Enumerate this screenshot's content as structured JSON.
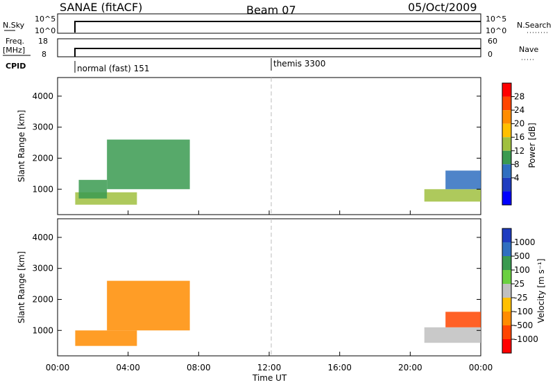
{
  "header": {
    "title": "SANAE (fitACF)",
    "beam": "Beam 07",
    "date": "05/Oct/2009"
  },
  "status_panels": {
    "nsky_label": "N.Sky",
    "nsky_ticks": [
      "10^5",
      "10^0"
    ],
    "nsearch_label": "N.Search",
    "nsearch_ticks": [
      "10^5",
      "10^0"
    ],
    "freq_label_1": "Freq.",
    "freq_label_2": "[MHz]",
    "freq_ticks": [
      "18",
      "8"
    ],
    "nave_label": "Nave",
    "nave_ticks": [
      "60",
      "0"
    ],
    "cpid_label": "CPID",
    "cpid_modes": [
      {
        "label": "normal (fast) 151",
        "start_hour": 0.75
      },
      {
        "label": "themis 3300",
        "start_hour": 12.0
      }
    ]
  },
  "axes": {
    "ylabel": "Slant Range [km]",
    "xlabel": "Time UT",
    "x_ticks": [
      "00:00",
      "04:00",
      "08:00",
      "12:00",
      "16:00",
      "20:00",
      "00:00"
    ],
    "y_ticks": [
      "1000",
      "2000",
      "3000",
      "4000"
    ]
  },
  "colorbars": {
    "power": {
      "label": "Power [dB]",
      "ticks": [
        "28",
        "24",
        "20",
        "16",
        "12",
        "8",
        "4"
      ],
      "colors": [
        "#ff0000",
        "#ff4500",
        "#ff8c00",
        "#ffc000",
        "#a0c040",
        "#3a9a50",
        "#2f6fc0",
        "#1e3cc0",
        "#0000ff"
      ]
    },
    "velocity": {
      "label": "Velocity [m s⁻¹]",
      "ticks": [
        "1000",
        "500",
        "100",
        "25",
        "-25",
        "-100",
        "-500",
        "-1000"
      ],
      "colors": [
        "#1e3cc0",
        "#2f6fc0",
        "#3a9a50",
        "#6ad040",
        "#c0c0c0",
        "#ffc000",
        "#ff8c00",
        "#ff4500",
        "#ff0000"
      ]
    }
  },
  "chart_data": {
    "type": "heatmap",
    "x_range_hours": [
      0,
      24
    ],
    "y_range_km": [
      180,
      4600
    ],
    "power_panel": {
      "echo_regions": [
        {
          "t0": 1.0,
          "t1": 4.5,
          "r0": 500,
          "r1": 900,
          "value": 12
        },
        {
          "t0": 1.2,
          "t1": 2.8,
          "r0": 700,
          "r1": 1300,
          "value": 8
        },
        {
          "t0": 2.8,
          "t1": 7.5,
          "r0": 1000,
          "r1": 2600,
          "value": 8
        },
        {
          "t0": 20.8,
          "t1": 24.0,
          "r0": 600,
          "r1": 1000,
          "value": 12
        },
        {
          "t0": 22.0,
          "t1": 24.0,
          "r0": 1000,
          "r1": 1600,
          "value": 6
        }
      ]
    },
    "velocity_panel": {
      "echo_regions": [
        {
          "t0": 1.0,
          "t1": 4.5,
          "r0": 500,
          "r1": 1000,
          "value": -100
        },
        {
          "t0": 2.8,
          "t1": 7.5,
          "r0": 1000,
          "r1": 2600,
          "value": -200
        },
        {
          "t0": 20.8,
          "t1": 24.0,
          "r0": 600,
          "r1": 1100,
          "value": 0
        },
        {
          "t0": 22.0,
          "t1": 24.0,
          "r0": 1100,
          "r1": 1600,
          "value": -600
        }
      ]
    },
    "cpid_change_hour": 12.0
  }
}
